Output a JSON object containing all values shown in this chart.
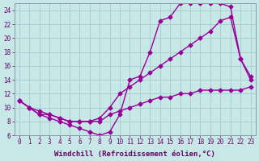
{
  "xlabel": "Windchill (Refroidissement éolien,°C)",
  "ylabel": "",
  "background_color": "#c8e8e8",
  "grid_color": "#a8d0d0",
  "line_color": "#990099",
  "xlim": [
    -0.5,
    23.5
  ],
  "ylim": [
    6,
    25
  ],
  "xticks": [
    0,
    1,
    2,
    3,
    4,
    5,
    6,
    7,
    8,
    9,
    10,
    11,
    12,
    13,
    14,
    15,
    16,
    17,
    18,
    19,
    20,
    21,
    22,
    23
  ],
  "yticks": [
    6,
    8,
    10,
    12,
    14,
    16,
    18,
    20,
    22,
    24
  ],
  "lines": [
    {
      "x": [
        0,
        1,
        2,
        3,
        4,
        5,
        6,
        7,
        8,
        9,
        10,
        11,
        12,
        13,
        14,
        15,
        16,
        17,
        18,
        19,
        20,
        21,
        22,
        23
      ],
      "y": [
        11,
        10,
        9,
        9,
        8.5,
        8,
        8,
        8,
        8,
        9,
        9.5,
        10,
        10.5,
        11,
        11.5,
        11.5,
        12,
        12,
        12.5,
        12.5,
        12.5,
        12.5,
        12.5,
        13
      ]
    },
    {
      "x": [
        0,
        1,
        2,
        3,
        4,
        5,
        6,
        7,
        8,
        9,
        10,
        11,
        12,
        13,
        14,
        15,
        16,
        17,
        18,
        19,
        20,
        21,
        22,
        23
      ],
      "y": [
        11,
        10,
        9,
        8.5,
        8,
        7.5,
        7,
        6.5,
        6,
        6.5,
        9,
        14,
        14.5,
        18,
        22.5,
        23,
        25,
        25,
        25,
        25,
        25,
        24.5,
        17,
        14
      ]
    },
    {
      "x": [
        0,
        1,
        2,
        3,
        4,
        5,
        6,
        7,
        8,
        9,
        10,
        11,
        12,
        13,
        14,
        15,
        16,
        17,
        18,
        19,
        20,
        21,
        22,
        23
      ],
      "y": [
        11,
        10,
        9.5,
        9,
        8.5,
        8,
        8,
        8,
        8.5,
        10,
        12,
        13,
        14,
        15,
        16,
        17,
        18,
        19,
        20,
        21,
        22.5,
        23,
        17,
        14.5
      ]
    }
  ],
  "marker": "D",
  "markersize": 2.5,
  "linewidth": 1.0,
  "tick_fontsize": 5.5,
  "label_fontsize": 6.5
}
